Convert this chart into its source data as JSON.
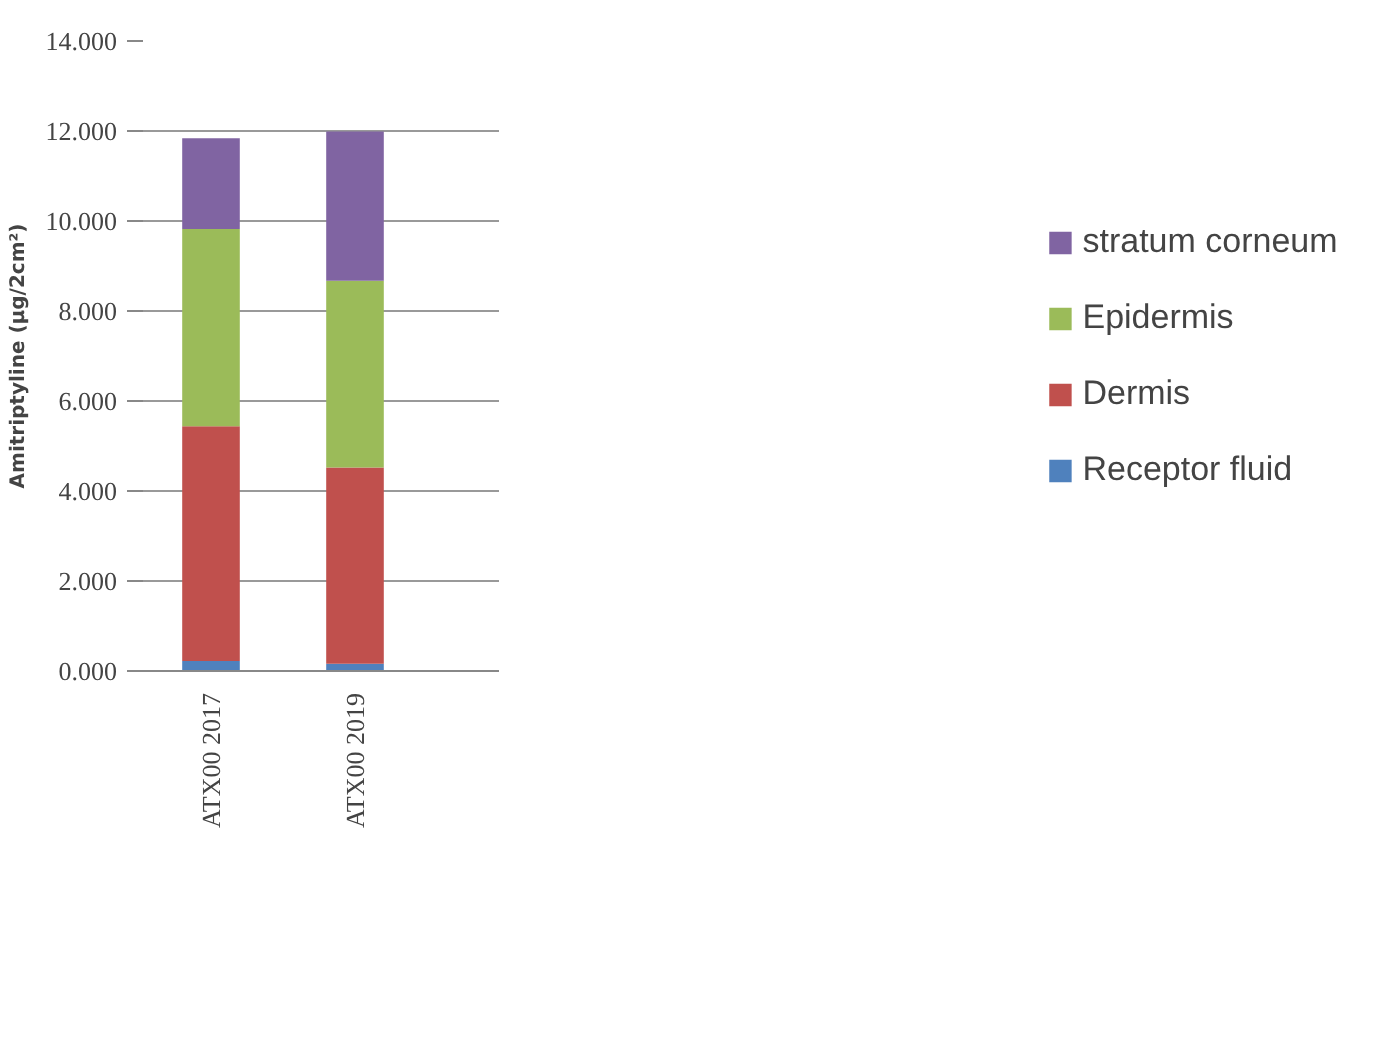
{
  "chart_data": {
    "type": "bar",
    "stacked": true,
    "ylabel": "Amitriptyline (µg/2cm²)",
    "categories": [
      "ATX00 2017",
      "ATX00 2019"
    ],
    "series": [
      {
        "name": "Receptor fluid",
        "color": "#4f81bd",
        "values": [
          0.22,
          0.16
        ]
      },
      {
        "name": "Dermis",
        "color": "#c0504d",
        "values": [
          5.22,
          4.36
        ]
      },
      {
        "name": "Epidermis",
        "color": "#9bbb59",
        "values": [
          4.38,
          4.15
        ]
      },
      {
        "name": "stratum corneum",
        "color": "#8064a2",
        "values": [
          2.02,
          3.32
        ]
      }
    ],
    "ylim": [
      0,
      14
    ],
    "yticks": [
      {
        "value": 0,
        "label": "0.000"
      },
      {
        "value": 2,
        "label": "2.000"
      },
      {
        "value": 4,
        "label": "4.000"
      },
      {
        "value": 6,
        "label": "6.000"
      },
      {
        "value": 8,
        "label": "8.000"
      },
      {
        "value": 10,
        "label": "10.000"
      },
      {
        "value": 12,
        "label": "12.000"
      },
      {
        "value": 14,
        "label": "14.000"
      }
    ],
    "grid": "y",
    "legend": "right"
  }
}
